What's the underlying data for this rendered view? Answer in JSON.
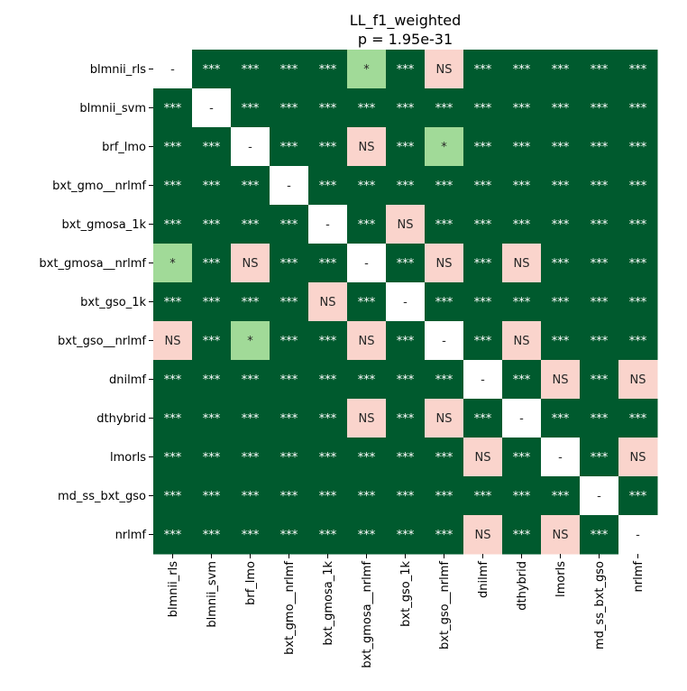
{
  "chart_data": {
    "type": "heatmap",
    "title": "LL_f1_weighted",
    "subtitle": "p = 1.95e-31",
    "rows": [
      "blmnii_rls",
      "blmnii_svm",
      "brf_lmo",
      "bxt_gmo__nrlmf",
      "bxt_gmosa_1k",
      "bxt_gmosa__nrlmf",
      "bxt_gso_1k",
      "bxt_gso__nrlmf",
      "dnilmf",
      "dthybrid",
      "lmorls",
      "md_ss_bxt_gso",
      "nrlmf"
    ],
    "columns": [
      "blmnii_rls",
      "blmnii_svm",
      "brf_lmo",
      "bxt_gmo__nrlmf",
      "bxt_gmosa_1k",
      "bxt_gmosa__nrlmf",
      "bxt_gso_1k",
      "bxt_gso__nrlmf",
      "dnilmf",
      "dthybrid",
      "lmorls",
      "md_ss_bxt_gso",
      "nrlmf"
    ],
    "cells": [
      [
        "-",
        "***",
        "***",
        "***",
        "***",
        "*",
        "***",
        "NS",
        "***",
        "***",
        "***",
        "***",
        "***"
      ],
      [
        "***",
        "-",
        "***",
        "***",
        "***",
        "***",
        "***",
        "***",
        "***",
        "***",
        "***",
        "***",
        "***"
      ],
      [
        "***",
        "***",
        "-",
        "***",
        "***",
        "NS",
        "***",
        "*",
        "***",
        "***",
        "***",
        "***",
        "***"
      ],
      [
        "***",
        "***",
        "***",
        "-",
        "***",
        "***",
        "***",
        "***",
        "***",
        "***",
        "***",
        "***",
        "***"
      ],
      [
        "***",
        "***",
        "***",
        "***",
        "-",
        "***",
        "NS",
        "***",
        "***",
        "***",
        "***",
        "***",
        "***"
      ],
      [
        "*",
        "***",
        "NS",
        "***",
        "***",
        "-",
        "***",
        "NS",
        "***",
        "NS",
        "***",
        "***",
        "***"
      ],
      [
        "***",
        "***",
        "***",
        "***",
        "NS",
        "***",
        "-",
        "***",
        "***",
        "***",
        "***",
        "***",
        "***"
      ],
      [
        "NS",
        "***",
        "*",
        "***",
        "***",
        "NS",
        "***",
        "-",
        "***",
        "NS",
        "***",
        "***",
        "***"
      ],
      [
        "***",
        "***",
        "***",
        "***",
        "***",
        "***",
        "***",
        "***",
        "-",
        "***",
        "NS",
        "***",
        "NS"
      ],
      [
        "***",
        "***",
        "***",
        "***",
        "***",
        "NS",
        "***",
        "NS",
        "***",
        "-",
        "***",
        "***",
        "***"
      ],
      [
        "***",
        "***",
        "***",
        "***",
        "***",
        "***",
        "***",
        "***",
        "NS",
        "***",
        "-",
        "***",
        "NS"
      ],
      [
        "***",
        "***",
        "***",
        "***",
        "***",
        "***",
        "***",
        "***",
        "***",
        "***",
        "***",
        "-",
        "***"
      ],
      [
        "***",
        "***",
        "***",
        "***",
        "***",
        "***",
        "***",
        "***",
        "NS",
        "***",
        "NS",
        "***",
        "-"
      ]
    ],
    "colors": {
      "***": "#005a2e",
      "*": "#a1da98",
      "NS": "#fad4cc",
      "-": "#ffffff"
    },
    "text_colors": {
      "***": "#ffffff",
      "*": "#262626",
      "NS": "#262626",
      "-": "#262626"
    },
    "grid": false
  }
}
